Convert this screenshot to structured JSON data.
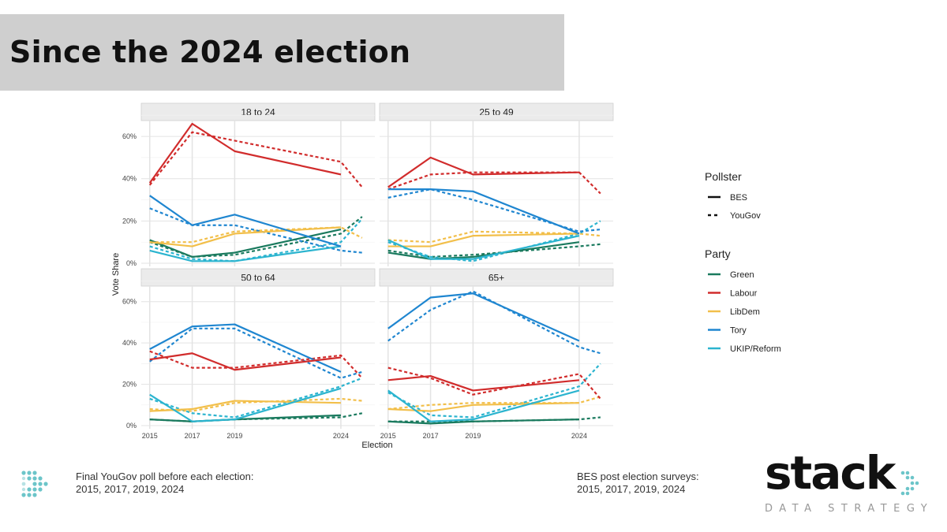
{
  "header": {
    "title": "Since the 2024 election"
  },
  "chart_data": {
    "type": "line",
    "ylabel": "Vote Share",
    "xlabel": "Election",
    "x": [
      2015,
      2017,
      2019,
      2024,
      2025
    ],
    "x_tick_labels": [
      "2015",
      "2017",
      "2019",
      "2024"
    ],
    "y_tick_labels": [
      "0%",
      "20%",
      "40%",
      "60%"
    ],
    "ylim": [
      0,
      66
    ],
    "legend": {
      "pollster_title": "Pollster",
      "pollster_items": [
        {
          "name": "BES",
          "style": "solid"
        },
        {
          "name": "YouGov",
          "style": "dashed"
        }
      ],
      "party_title": "Party",
      "party_items": [
        {
          "name": "Green",
          "color": "#1a7a5e"
        },
        {
          "name": "Labour",
          "color": "#d12c2c"
        },
        {
          "name": "LibDem",
          "color": "#f2bf4a"
        },
        {
          "name": "Tory",
          "color": "#1f86d0"
        },
        {
          "name": "UKIP/Reform",
          "color": "#2bb4cf"
        }
      ]
    },
    "panels": [
      {
        "title": "18 to 24",
        "bes": {
          "Green": [
            11,
            3,
            5,
            16
          ],
          "Labour": [
            38,
            66,
            53,
            42
          ],
          "LibDem": [
            10,
            8,
            14,
            17
          ],
          "Tory": [
            32,
            18,
            23,
            8
          ],
          "UKIP/Reform": [
            6,
            1,
            1,
            8
          ]
        },
        "yougov": {
          "Green": [
            10,
            3,
            4,
            14,
            22
          ],
          "Labour": [
            37,
            62,
            58,
            48,
            36
          ],
          "LibDem": [
            10,
            10,
            15,
            17,
            12
          ],
          "Tory": [
            26,
            18,
            18,
            6,
            5
          ],
          "UKIP/Reform": [
            8,
            2,
            1,
            10,
            21
          ]
        }
      },
      {
        "title": "25 to 49",
        "bes": {
          "Green": [
            5,
            2,
            3,
            10
          ],
          "Labour": [
            36,
            50,
            42,
            43
          ],
          "LibDem": [
            8,
            8,
            13,
            14
          ],
          "Tory": [
            35,
            35,
            34,
            14
          ],
          "UKIP/Reform": [
            11,
            2,
            2,
            13
          ]
        },
        "yougov": {
          "Green": [
            6,
            3,
            4,
            8,
            9
          ],
          "Labour": [
            35,
            42,
            43,
            43,
            33
          ],
          "LibDem": [
            11,
            10,
            15,
            14,
            13
          ],
          "Tory": [
            31,
            35,
            30,
            15,
            16
          ],
          "UKIP/Reform": [
            10,
            3,
            1,
            14,
            20
          ]
        }
      },
      {
        "title": "50 to 64",
        "bes": {
          "Green": [
            3,
            2,
            3,
            5
          ],
          "Labour": [
            32,
            35,
            27,
            33
          ],
          "LibDem": [
            7,
            8,
            12,
            11
          ],
          "Tory": [
            37,
            48,
            49,
            26
          ],
          "UKIP/Reform": [
            15,
            2,
            3,
            18
          ]
        },
        "yougov": {
          "Green": [
            3,
            2,
            3,
            4,
            6
          ],
          "Labour": [
            36,
            28,
            28,
            34,
            23
          ],
          "LibDem": [
            8,
            7,
            11,
            13,
            12
          ],
          "Tory": [
            31,
            47,
            47,
            23,
            26
          ],
          "UKIP/Reform": [
            13,
            6,
            4,
            19,
            23
          ]
        }
      },
      {
        "title": "65+",
        "bes": {
          "Green": [
            2,
            1,
            2,
            3
          ],
          "Labour": [
            22,
            24,
            17,
            22
          ],
          "LibDem": [
            8,
            7,
            10,
            11
          ],
          "Tory": [
            47,
            62,
            64,
            41
          ],
          "UKIP/Reform": [
            17,
            2,
            3,
            17
          ]
        },
        "yougov": {
          "Green": [
            2,
            2,
            2,
            3,
            4
          ],
          "Labour": [
            28,
            23,
            15,
            25,
            13
          ],
          "LibDem": [
            8,
            10,
            11,
            11,
            14
          ],
          "Tory": [
            41,
            56,
            65,
            38,
            35
          ],
          "UKIP/Reform": [
            16,
            5,
            4,
            19,
            30
          ]
        }
      }
    ]
  },
  "footer": {
    "left_note_line1": "Final YouGov poll before each election:",
    "left_note_line2": "2015, 2017, 2019, 2024",
    "right_note_line1": "BES post election surveys:",
    "right_note_line2": "2015, 2017, 2019, 2024",
    "logo_word": "stack",
    "logo_sub": "DATA STRATEGY"
  }
}
